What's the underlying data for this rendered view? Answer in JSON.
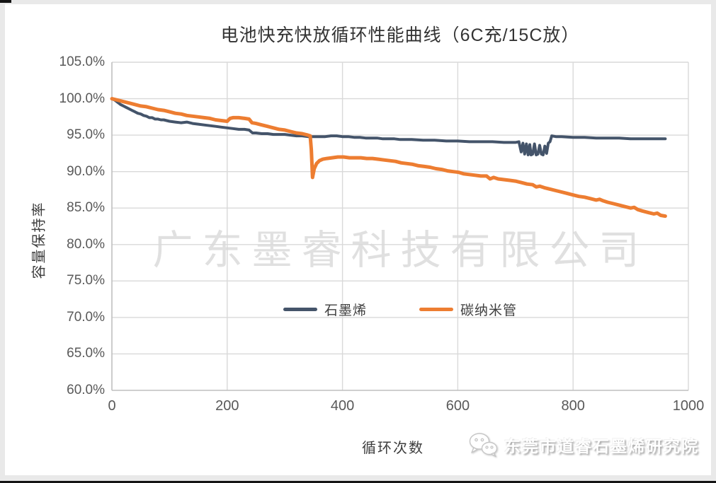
{
  "page": {
    "background_color": "#e9e9e9",
    "panel_color": "#ffffff"
  },
  "chart_data": {
    "type": "line",
    "title": "电池快充快放循环性能曲线（6C充/15C放）",
    "xlabel": "循环次数",
    "ylabel": "容量保持率",
    "grid": true,
    "legend_position": "inside-center",
    "x_range": [
      0,
      1000
    ],
    "y_range": [
      60,
      105
    ],
    "x_ticks": [
      {
        "value": 0,
        "label": "0"
      },
      {
        "value": 200,
        "label": "200"
      },
      {
        "value": 400,
        "label": "400"
      },
      {
        "value": 600,
        "label": "600"
      },
      {
        "value": 800,
        "label": "800"
      },
      {
        "value": 1000,
        "label": "1000"
      }
    ],
    "y_ticks": [
      {
        "value": 105,
        "label": "105.0%"
      },
      {
        "value": 100,
        "label": "100.0%"
      },
      {
        "value": 95,
        "label": "95.0%"
      },
      {
        "value": 90,
        "label": "90.0%"
      },
      {
        "value": 85,
        "label": "85.0%"
      },
      {
        "value": 80,
        "label": "80.0%"
      },
      {
        "value": 75,
        "label": "75.0%"
      },
      {
        "value": 70,
        "label": "70.0%"
      },
      {
        "value": 65,
        "label": "65.0%"
      },
      {
        "value": 60,
        "label": "60.0%"
      }
    ],
    "colors": {
      "gridline": "#d9d9d9",
      "axis": "#bfbfbf",
      "tick_text": "#595959",
      "title_text": "#333333"
    },
    "series": [
      {
        "name": "石墨烯",
        "color": "#44546A",
        "stroke_width": 4,
        "points": [
          [
            0,
            100.0
          ],
          [
            5,
            99.8
          ],
          [
            10,
            99.5
          ],
          [
            15,
            99.2
          ],
          [
            20,
            99.0
          ],
          [
            25,
            98.8
          ],
          [
            30,
            98.6
          ],
          [
            35,
            98.4
          ],
          [
            40,
            98.2
          ],
          [
            45,
            98.0
          ],
          [
            50,
            97.9
          ],
          [
            55,
            97.7
          ],
          [
            60,
            97.6
          ],
          [
            65,
            97.4
          ],
          [
            70,
            97.4
          ],
          [
            75,
            97.2
          ],
          [
            80,
            97.2
          ],
          [
            85,
            97.1
          ],
          [
            90,
            97.1
          ],
          [
            95,
            97.0
          ],
          [
            100,
            96.9
          ],
          [
            110,
            96.8
          ],
          [
            120,
            96.7
          ],
          [
            130,
            96.8
          ],
          [
            140,
            96.6
          ],
          [
            150,
            96.5
          ],
          [
            160,
            96.4
          ],
          [
            170,
            96.3
          ],
          [
            180,
            96.2
          ],
          [
            190,
            96.1
          ],
          [
            200,
            96.0
          ],
          [
            210,
            95.9
          ],
          [
            220,
            95.8
          ],
          [
            230,
            95.8
          ],
          [
            238,
            95.7
          ],
          [
            244,
            95.3
          ],
          [
            250,
            95.3
          ],
          [
            260,
            95.2
          ],
          [
            270,
            95.2
          ],
          [
            280,
            95.1
          ],
          [
            290,
            95.1
          ],
          [
            300,
            95.1
          ],
          [
            310,
            95.0
          ],
          [
            320,
            94.9
          ],
          [
            330,
            94.9
          ],
          [
            340,
            94.8
          ],
          [
            350,
            94.8
          ],
          [
            360,
            94.8
          ],
          [
            370,
            94.8
          ],
          [
            380,
            94.9
          ],
          [
            390,
            94.9
          ],
          [
            400,
            94.8
          ],
          [
            410,
            94.8
          ],
          [
            420,
            94.7
          ],
          [
            430,
            94.7
          ],
          [
            440,
            94.6
          ],
          [
            450,
            94.6
          ],
          [
            460,
            94.6
          ],
          [
            470,
            94.5
          ],
          [
            480,
            94.5
          ],
          [
            490,
            94.5
          ],
          [
            500,
            94.4
          ],
          [
            520,
            94.4
          ],
          [
            540,
            94.3
          ],
          [
            560,
            94.3
          ],
          [
            580,
            94.2
          ],
          [
            600,
            94.2
          ],
          [
            620,
            94.1
          ],
          [
            640,
            94.1
          ],
          [
            660,
            94.1
          ],
          [
            680,
            94.0
          ],
          [
            700,
            94.0
          ],
          [
            706,
            94.1
          ],
          [
            710,
            92.7
          ],
          [
            713,
            93.9
          ],
          [
            716,
            92.4
          ],
          [
            719,
            93.8
          ],
          [
            722,
            92.3
          ],
          [
            725,
            93.7
          ],
          [
            727,
            92.3
          ],
          [
            730,
            92.4
          ],
          [
            733,
            93.8
          ],
          [
            736,
            92.3
          ],
          [
            739,
            92.4
          ],
          [
            742,
            93.6
          ],
          [
            745,
            92.4
          ],
          [
            748,
            92.3
          ],
          [
            751,
            93.5
          ],
          [
            754,
            92.5
          ],
          [
            757,
            93.9
          ],
          [
            760,
            94.1
          ],
          [
            763,
            94.9
          ],
          [
            770,
            94.8
          ],
          [
            780,
            94.8
          ],
          [
            800,
            94.7
          ],
          [
            820,
            94.7
          ],
          [
            840,
            94.6
          ],
          [
            860,
            94.6
          ],
          [
            880,
            94.6
          ],
          [
            900,
            94.5
          ],
          [
            920,
            94.5
          ],
          [
            940,
            94.5
          ],
          [
            960,
            94.5
          ]
        ]
      },
      {
        "name": "碳纳米管",
        "color": "#ED7D31",
        "stroke_width": 5,
        "points": [
          [
            0,
            100.0
          ],
          [
            10,
            99.8
          ],
          [
            20,
            99.6
          ],
          [
            30,
            99.4
          ],
          [
            40,
            99.2
          ],
          [
            50,
            99.0
          ],
          [
            60,
            98.9
          ],
          [
            70,
            98.7
          ],
          [
            80,
            98.5
          ],
          [
            90,
            98.4
          ],
          [
            100,
            98.2
          ],
          [
            110,
            98.0
          ],
          [
            120,
            97.9
          ],
          [
            130,
            97.7
          ],
          [
            140,
            97.6
          ],
          [
            150,
            97.5
          ],
          [
            160,
            97.4
          ],
          [
            170,
            97.3
          ],
          [
            180,
            97.1
          ],
          [
            190,
            97.0
          ],
          [
            200,
            96.9
          ],
          [
            205,
            97.3
          ],
          [
            210,
            97.4
          ],
          [
            220,
            97.4
          ],
          [
            230,
            97.3
          ],
          [
            238,
            97.2
          ],
          [
            243,
            96.7
          ],
          [
            250,
            96.6
          ],
          [
            260,
            96.4
          ],
          [
            270,
            96.2
          ],
          [
            280,
            96.0
          ],
          [
            290,
            95.8
          ],
          [
            300,
            95.7
          ],
          [
            310,
            95.5
          ],
          [
            320,
            95.3
          ],
          [
            330,
            95.2
          ],
          [
            340,
            95.0
          ],
          [
            344,
            94.9
          ],
          [
            346,
            93.0
          ],
          [
            348,
            89.2
          ],
          [
            351,
            90.4
          ],
          [
            355,
            91.1
          ],
          [
            360,
            91.5
          ],
          [
            366,
            91.7
          ],
          [
            373,
            91.8
          ],
          [
            382,
            91.9
          ],
          [
            392,
            92.0
          ],
          [
            402,
            92.0
          ],
          [
            412,
            91.9
          ],
          [
            422,
            91.9
          ],
          [
            432,
            91.9
          ],
          [
            442,
            91.8
          ],
          [
            452,
            91.8
          ],
          [
            462,
            91.7
          ],
          [
            472,
            91.6
          ],
          [
            482,
            91.5
          ],
          [
            492,
            91.4
          ],
          [
            502,
            91.2
          ],
          [
            512,
            91.1
          ],
          [
            522,
            91.0
          ],
          [
            532,
            90.8
          ],
          [
            542,
            90.7
          ],
          [
            552,
            90.6
          ],
          [
            562,
            90.4
          ],
          [
            572,
            90.3
          ],
          [
            582,
            90.1
          ],
          [
            592,
            90.0
          ],
          [
            602,
            89.9
          ],
          [
            610,
            89.7
          ],
          [
            620,
            89.6
          ],
          [
            630,
            89.5
          ],
          [
            640,
            89.4
          ],
          [
            650,
            89.4
          ],
          [
            656,
            89.0
          ],
          [
            662,
            89.2
          ],
          [
            670,
            89.0
          ],
          [
            680,
            88.9
          ],
          [
            690,
            88.8
          ],
          [
            700,
            88.7
          ],
          [
            710,
            88.5
          ],
          [
            720,
            88.3
          ],
          [
            730,
            88.2
          ],
          [
            736,
            87.9
          ],
          [
            742,
            88.0
          ],
          [
            750,
            87.8
          ],
          [
            760,
            87.6
          ],
          [
            770,
            87.4
          ],
          [
            780,
            87.2
          ],
          [
            790,
            87.0
          ],
          [
            800,
            86.8
          ],
          [
            810,
            86.6
          ],
          [
            820,
            86.5
          ],
          [
            830,
            86.3
          ],
          [
            840,
            86.1
          ],
          [
            846,
            86.2
          ],
          [
            852,
            86.0
          ],
          [
            860,
            85.8
          ],
          [
            870,
            85.6
          ],
          [
            880,
            85.4
          ],
          [
            890,
            85.2
          ],
          [
            900,
            85.0
          ],
          [
            906,
            85.1
          ],
          [
            912,
            84.8
          ],
          [
            920,
            84.6
          ],
          [
            930,
            84.4
          ],
          [
            940,
            84.2
          ],
          [
            946,
            84.3
          ],
          [
            952,
            84.0
          ],
          [
            960,
            83.9
          ]
        ]
      }
    ]
  },
  "watermarks": {
    "center": "广东墨睿科技有限公司",
    "footer": "东莞市道睿石墨烯研究院"
  }
}
